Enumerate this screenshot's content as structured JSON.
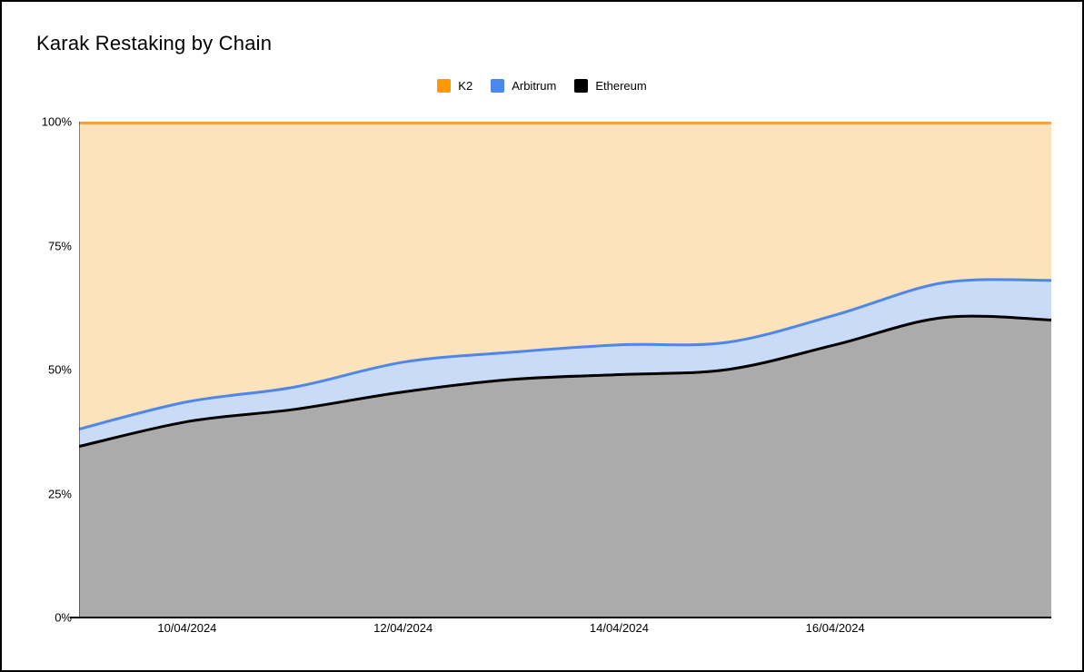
{
  "title": "Karak Restaking by Chain",
  "legend": {
    "items": [
      {
        "label": "K2",
        "color": "#FF9900"
      },
      {
        "label": "Arbitrum",
        "color": "#4D86EC"
      },
      {
        "label": "Ethereum",
        "color": "#000000"
      }
    ]
  },
  "axes": {
    "axis_line_color": "#000000",
    "tick_label_color": "#000000"
  },
  "chart_data": {
    "type": "area",
    "stacked": true,
    "percent_axis": true,
    "title": "Karak Restaking by Chain",
    "x": [
      "09/04/2024",
      "10/04/2024",
      "11/04/2024",
      "12/04/2024",
      "13/04/2024",
      "14/04/2024",
      "15/04/2024",
      "16/04/2024",
      "17/04/2024",
      "18/04/2024"
    ],
    "x_tick_labels": [
      "10/04/2024",
      "12/04/2024",
      "14/04/2024",
      "16/04/2024"
    ],
    "y_ticks": [
      0,
      25,
      50,
      75,
      100
    ],
    "y_tick_labels": [
      "0%",
      "25%",
      "50%",
      "75%",
      "100%"
    ],
    "ylim": [
      0,
      100
    ],
    "grid": false,
    "legend_position": "top",
    "series": [
      {
        "name": "Ethereum",
        "line_color": "#000000",
        "fill_color": "#ABABAB",
        "values": [
          34.5,
          39.5,
          42,
          45.5,
          48,
          49,
          50,
          55,
          60.5,
          60
        ]
      },
      {
        "name": "Arbitrum",
        "line_color": "#4D86EC",
        "fill_color": "#CADBF8",
        "values": [
          3.5,
          4,
          4.5,
          6,
          5.5,
          6,
          5.5,
          6,
          7,
          8
        ]
      },
      {
        "name": "K2",
        "line_color": "#F9A13C",
        "fill_color": "#FCE3BB",
        "values": [
          62,
          56.5,
          53.5,
          48.5,
          46.5,
          45,
          44.5,
          39,
          32.5,
          32
        ]
      }
    ]
  }
}
